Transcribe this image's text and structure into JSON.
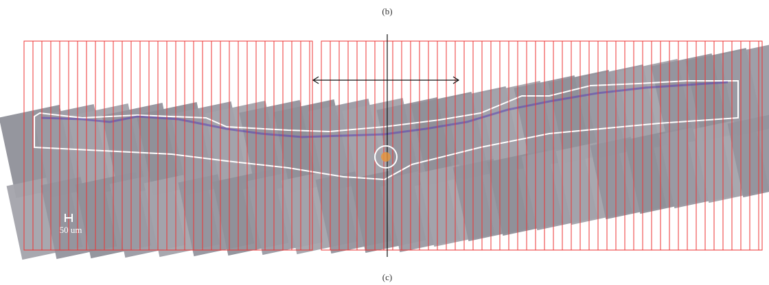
{
  "labels": {
    "top": "(b)",
    "bottom": "(c)",
    "scale_bar": "50 um"
  }
}
